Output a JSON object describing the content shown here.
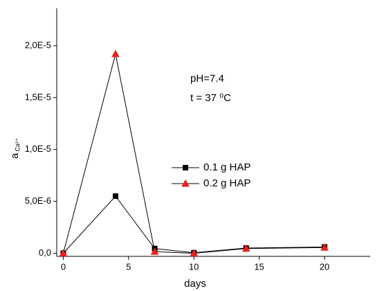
{
  "chart_data": {
    "type": "line",
    "x_label": "days",
    "y_label": "a",
    "y_label_subscript": "Ca²⁺",
    "annotations": [
      "pH=7.4",
      "t = 37 ⁰C"
    ],
    "x": [
      0,
      4,
      7,
      10,
      14,
      20
    ],
    "line_color": "#000000",
    "series": [
      {
        "name": "0.1 g HAP",
        "color": "#000000",
        "marker": "square",
        "values": [
          0,
          5.5e-06,
          4.5e-07,
          5e-08,
          5e-07,
          6e-07
        ]
      },
      {
        "name": "0.2 g HAP",
        "color": "#e8201c",
        "marker": "triangle",
        "values": [
          0,
          1.92e-05,
          1.5e-07,
          0,
          4.5e-07,
          5.5e-07
        ]
      }
    ],
    "xlim": [
      -0.5,
      23.5
    ],
    "ylim": [
      -3e-07,
      2.36e-05
    ],
    "xticks": [
      0,
      5,
      10,
      15,
      20
    ],
    "yticks": [
      {
        "value": 0,
        "label": "0,0"
      },
      {
        "value": 5e-06,
        "label": "5,0E-6"
      },
      {
        "value": 1e-05,
        "label": "1,0E-5"
      },
      {
        "value": 1.5e-05,
        "label": "1,5E-5"
      },
      {
        "value": 2e-05,
        "label": "2,0E-5"
      }
    ],
    "grid": false
  }
}
